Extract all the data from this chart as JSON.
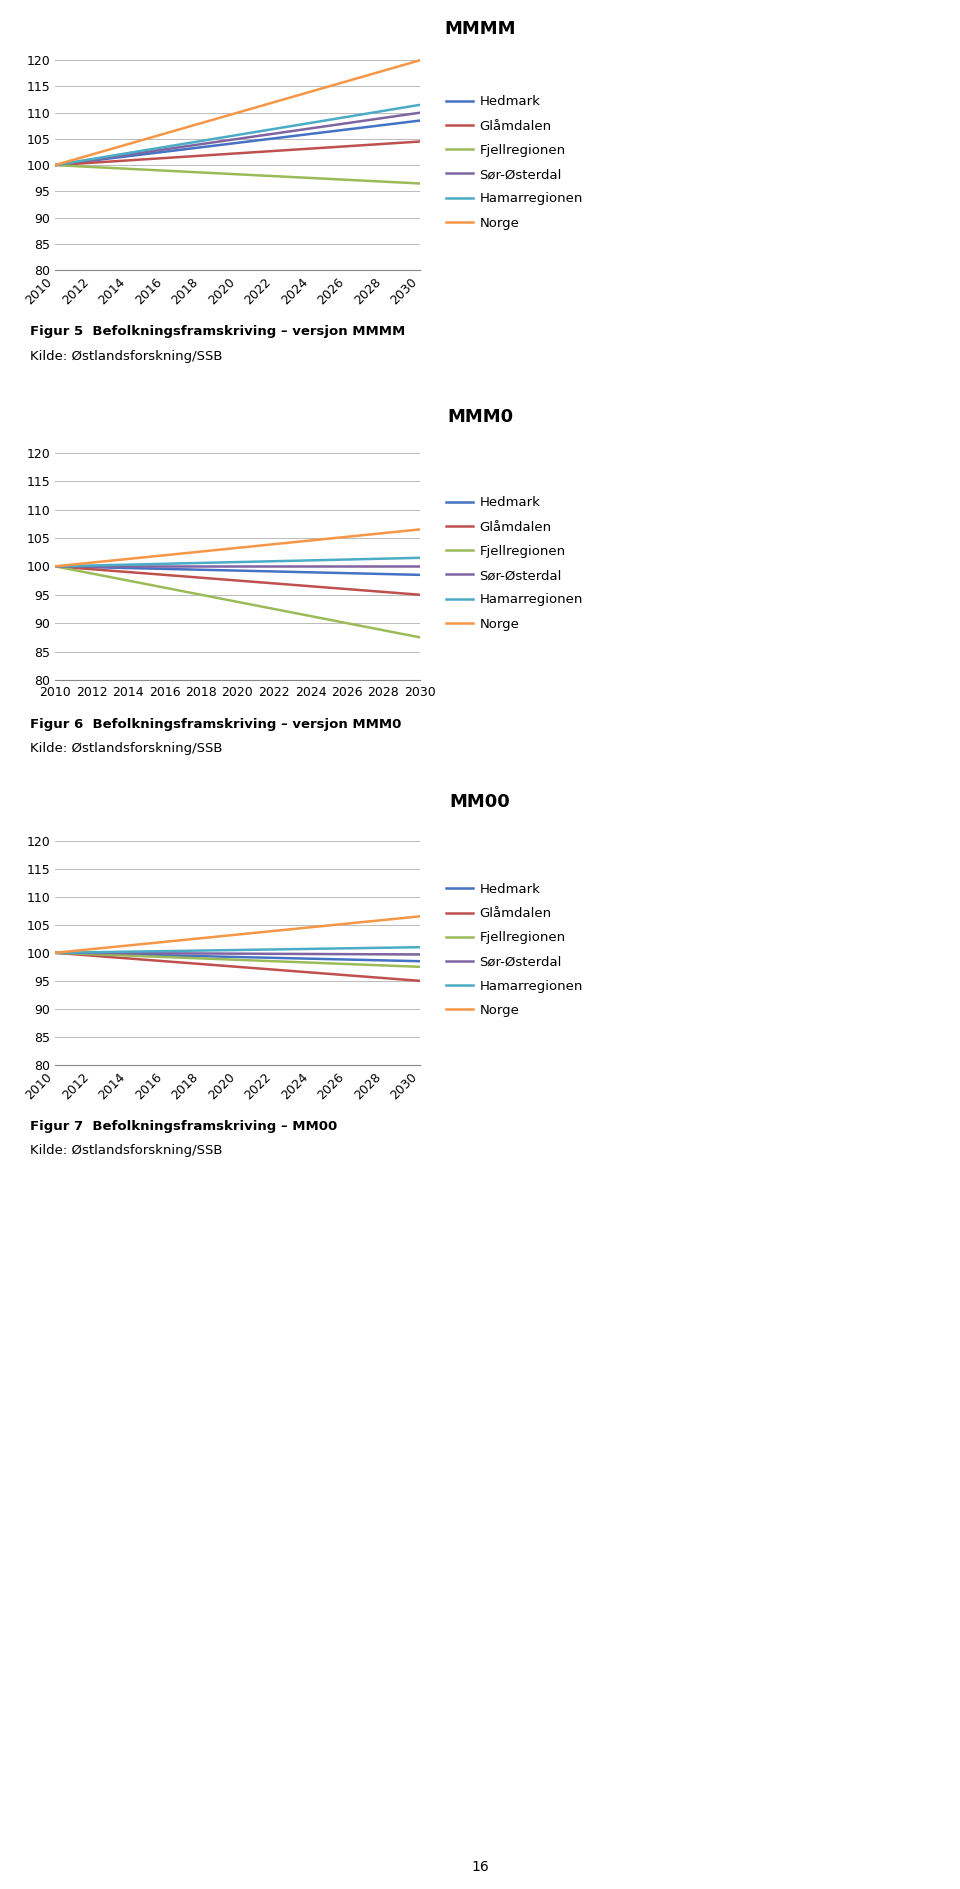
{
  "years": [
    2010,
    2030
  ],
  "series_labels": [
    "Hedmark",
    "Glåmdalen",
    "Fjellregionen",
    "Sør-Østerdal",
    "Hamarregionen",
    "Norge"
  ],
  "colors": [
    "#4472C4",
    "#C0504D",
    "#9BBB59",
    "#8064A2",
    "#4BACC6",
    "#F79646"
  ],
  "chart1": {
    "title": "MMMM",
    "data": {
      "Hedmark": [
        100,
        108.5
      ],
      "Glåmdalen": [
        100,
        104.5
      ],
      "Fjellregionen": [
        100,
        96.5
      ],
      "Sør-Østerdal": [
        100,
        110.0
      ],
      "Hamarregionen": [
        100,
        111.5
      ],
      "Norge": [
        100,
        120.0
      ]
    },
    "figur_label": "Figur 5  Befolkningsframskriving – versjon MMMM",
    "kilde_label": "Kilde: Østlandsforskning/SSB",
    "xtick_rotation": 45,
    "xtick_ha": "right"
  },
  "chart2": {
    "title": "MMM0",
    "data": {
      "Hedmark": [
        100,
        98.5
      ],
      "Glåmdalen": [
        100,
        95.0
      ],
      "Fjellregionen": [
        100,
        87.5
      ],
      "Sør-Østerdal": [
        100,
        100.0
      ],
      "Hamarregionen": [
        100,
        101.5
      ],
      "Norge": [
        100,
        106.5
      ]
    },
    "figur_label": "Figur 6  Befolkningsframskriving – versjon MMM0",
    "kilde_label": "Kilde: Østlandsforskning/SSB",
    "xtick_rotation": 0,
    "xtick_ha": "center"
  },
  "chart3": {
    "title": "MM00",
    "data": {
      "Hedmark": [
        100,
        98.5
      ],
      "Glåmdalen": [
        100,
        95.0
      ],
      "Fjellregionen": [
        100,
        97.5
      ],
      "Sør-Østerdal": [
        100,
        99.7
      ],
      "Hamarregionen": [
        100,
        101.0
      ],
      "Norge": [
        100,
        106.5
      ]
    },
    "figur_label": "Figur 7  Befolkningsframskriving – MM00",
    "kilde_label": "Kilde: Østlandsforskning/SSB",
    "xtick_rotation": 45,
    "xtick_ha": "right"
  },
  "all_years": [
    2010,
    2012,
    2014,
    2016,
    2018,
    2020,
    2022,
    2024,
    2026,
    2028,
    2030
  ],
  "ylim": [
    80,
    121
  ],
  "yticks": [
    80,
    85,
    90,
    95,
    100,
    105,
    110,
    115,
    120
  ],
  "page_number": "16",
  "background_color": "#FFFFFF"
}
